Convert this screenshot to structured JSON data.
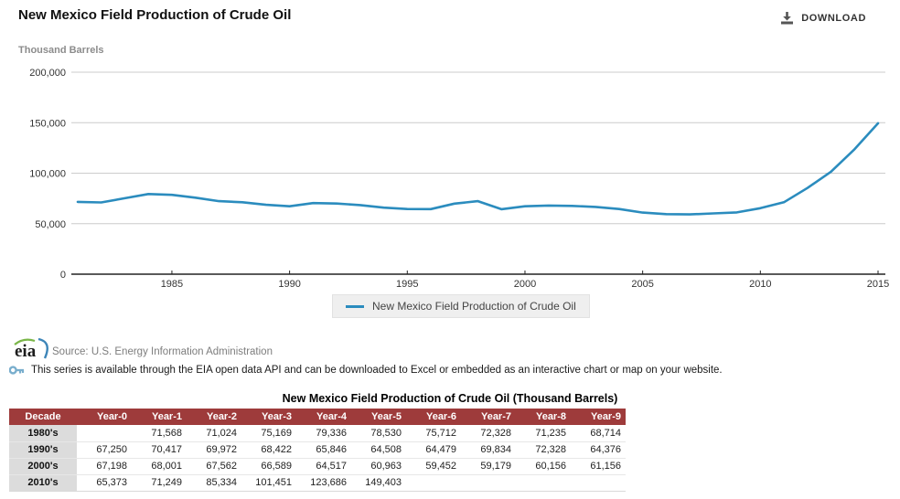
{
  "header": {
    "title": "New Mexico Field Production of Crude Oil",
    "download_label": "DOWNLOAD"
  },
  "chart": {
    "y_axis_title": "Thousand Barrels",
    "legend_label": "New Mexico Field Production of Crude Oil",
    "colors": {
      "line": "#2b8cbe",
      "grid": "#cccccc",
      "axis": "#222222",
      "tick_text": "#333333"
    }
  },
  "chart_data": {
    "type": "line",
    "title": "New Mexico Field Production of Crude Oil",
    "ylabel": "Thousand Barrels",
    "xlabel": "",
    "legend": "New Mexico Field Production of Crude Oil",
    "legend_position": "bottom",
    "grid": "horizontal",
    "ylim": [
      0,
      200000
    ],
    "xlim": [
      1981,
      2015
    ],
    "yticks": {
      "values": [
        0,
        50000,
        100000,
        150000,
        200000
      ],
      "labels": [
        "0",
        "50,000",
        "100,000",
        "150,000",
        "200,000"
      ]
    },
    "xticks": [
      1985,
      1990,
      1995,
      2000,
      2005,
      2010,
      2015
    ],
    "years": [
      1981,
      1982,
      1983,
      1984,
      1985,
      1986,
      1987,
      1988,
      1989,
      1990,
      1991,
      1992,
      1993,
      1994,
      1995,
      1996,
      1997,
      1998,
      1999,
      2000,
      2001,
      2002,
      2003,
      2004,
      2005,
      2006,
      2007,
      2008,
      2009,
      2010,
      2011,
      2012,
      2013,
      2014,
      2015
    ],
    "values": [
      71568,
      71024,
      75169,
      79336,
      78530,
      75712,
      72328,
      71235,
      68714,
      67250,
      70417,
      69972,
      68422,
      65846,
      64508,
      64479,
      69834,
      72328,
      64376,
      67198,
      68001,
      67562,
      66589,
      64517,
      60963,
      59452,
      59179,
      60156,
      61156,
      65373,
      71249,
      85334,
      101451,
      123686,
      149403
    ]
  },
  "source": {
    "logo_text": "eia",
    "text": "Source: U.S. Energy Information Administration"
  },
  "api_note": {
    "text": "This series is available through the EIA open data API and can be downloaded to Excel or embedded as an interactive chart or map on your website."
  },
  "table": {
    "title": "New Mexico Field Production of Crude Oil (Thousand Barrels)",
    "columns": [
      "Decade",
      "Year-0",
      "Year-1",
      "Year-2",
      "Year-3",
      "Year-4",
      "Year-5",
      "Year-6",
      "Year-7",
      "Year-8",
      "Year-9"
    ],
    "rows": [
      {
        "decade": "1980's",
        "values": [
          "",
          "71,568",
          "71,024",
          "75,169",
          "79,336",
          "78,530",
          "75,712",
          "72,328",
          "71,235",
          "68,714"
        ]
      },
      {
        "decade": "1990's",
        "values": [
          "67,250",
          "70,417",
          "69,972",
          "68,422",
          "65,846",
          "64,508",
          "64,479",
          "69,834",
          "72,328",
          "64,376"
        ]
      },
      {
        "decade": "2000's",
        "values": [
          "67,198",
          "68,001",
          "67,562",
          "66,589",
          "64,517",
          "60,963",
          "59,452",
          "59,179",
          "60,156",
          "61,156"
        ]
      },
      {
        "decade": "2010's",
        "values": [
          "65,373",
          "71,249",
          "85,334",
          "101,451",
          "123,686",
          "149,403",
          "",
          "",
          "",
          ""
        ]
      }
    ]
  }
}
